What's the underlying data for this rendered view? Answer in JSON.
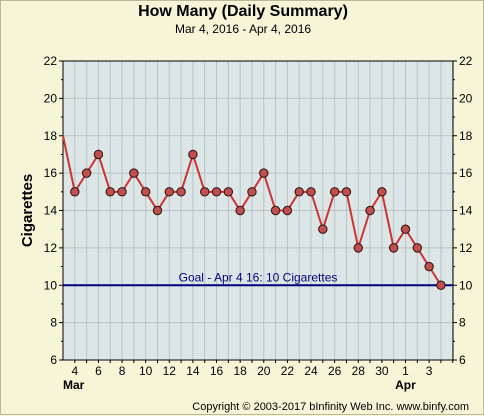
{
  "chart_data": {
    "type": "line",
    "title": "How Many (Daily Summary)",
    "subtitle": "Mar 4, 2016 - Apr 4, 2016",
    "ylabel": "Cigarettes",
    "xlabel": "",
    "ylim": [
      6,
      22
    ],
    "yticks": [
      6,
      8,
      10,
      12,
      14,
      16,
      18,
      20,
      22
    ],
    "grid": true,
    "x_tick_labels": [
      {
        "day": 1,
        "label": "4"
      },
      {
        "day": 3,
        "label": "6"
      },
      {
        "day": 5,
        "label": "8"
      },
      {
        "day": 7,
        "label": "10"
      },
      {
        "day": 9,
        "label": "12"
      },
      {
        "day": 11,
        "label": "14"
      },
      {
        "day": 13,
        "label": "16"
      },
      {
        "day": 15,
        "label": "18"
      },
      {
        "day": 17,
        "label": "20"
      },
      {
        "day": 19,
        "label": "22"
      },
      {
        "day": 21,
        "label": "24"
      },
      {
        "day": 23,
        "label": "26"
      },
      {
        "day": 25,
        "label": "28"
      },
      {
        "day": 27,
        "label": "30"
      },
      {
        "day": 29,
        "label": "1"
      },
      {
        "day": 31,
        "label": "3"
      }
    ],
    "month_labels": [
      {
        "day": 0,
        "label": "Mar"
      },
      {
        "day": 29,
        "label": "Apr"
      }
    ],
    "series": [
      {
        "name": "How Many",
        "x": [
          0,
          1,
          2,
          3,
          4,
          5,
          6,
          7,
          8,
          9,
          10,
          11,
          12,
          13,
          14,
          15,
          16,
          17,
          18,
          19,
          20,
          21,
          22,
          23,
          24,
          25,
          26,
          27,
          28,
          29,
          30,
          31,
          32
        ],
        "values": [
          18,
          15,
          16,
          17,
          15,
          15,
          16,
          15,
          14,
          15,
          15,
          17,
          15,
          15,
          15,
          14,
          15,
          16,
          14,
          14,
          15,
          15,
          13,
          15,
          15,
          12,
          14,
          15,
          12,
          13,
          12,
          11,
          10
        ],
        "markers_from_index": 1
      }
    ],
    "goal": {
      "value": 10,
      "label": "Goal - Apr 4 16: 10 Cigarettes"
    },
    "colors": {
      "line": "#cc3333",
      "marker_fill": "#c0504d",
      "goal": "#00007a",
      "plot_bg": "#dde6e6",
      "page_bg": "#f6f5d8"
    }
  },
  "footer": {
    "copyright": "Copyright © 2003-2017 bInfinity Web Inc. www.binfy.com"
  }
}
